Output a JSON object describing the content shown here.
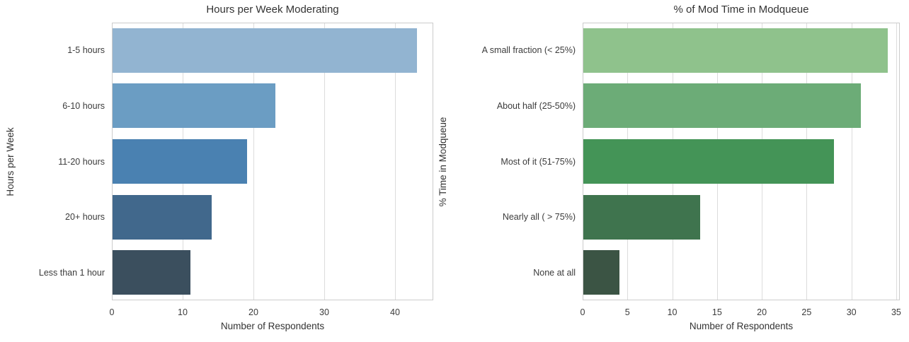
{
  "figure": {
    "background_color": "#ffffff",
    "text_color": "#333333",
    "grid_color": "#dcdcdc",
    "spine_color": "#cccccc"
  },
  "chart_data": [
    {
      "type": "bar",
      "orientation": "horizontal",
      "title": "Hours per Week Moderating",
      "xlabel": "Number of Respondents",
      "ylabel": "Hours per Week",
      "categories": [
        "1-5 hours",
        "6-10 hours",
        "11-20 hours",
        "20+ hours",
        "Less than 1 hour"
      ],
      "values": [
        43,
        23,
        19,
        14,
        11
      ],
      "bar_colors": [
        "#92b4d1",
        "#6b9dc3",
        "#4a81b1",
        "#41688c",
        "#3b4f5e"
      ],
      "xticks": [
        0,
        10,
        20,
        30,
        40
      ],
      "xlim": [
        0,
        45.4
      ],
      "grid": true,
      "legend": false
    },
    {
      "type": "bar",
      "orientation": "horizontal",
      "title": "% of Mod Time in Modqueue",
      "xlabel": "Number of Respondents",
      "ylabel": "% Time in Modqueue",
      "categories": [
        "A small fraction (< 25%)",
        "About half (25-50%)",
        "Most of it (51-75%)",
        "Nearly all ( > 75%)",
        "None at all"
      ],
      "values": [
        34,
        31,
        28,
        13,
        4
      ],
      "bar_colors": [
        "#8fc28c",
        "#6cac77",
        "#449457",
        "#3f744e",
        "#3b5444"
      ],
      "xticks": [
        0,
        5,
        10,
        15,
        20,
        25,
        30,
        35
      ],
      "xlim": [
        0,
        35.4
      ],
      "grid": true,
      "legend": false
    }
  ]
}
